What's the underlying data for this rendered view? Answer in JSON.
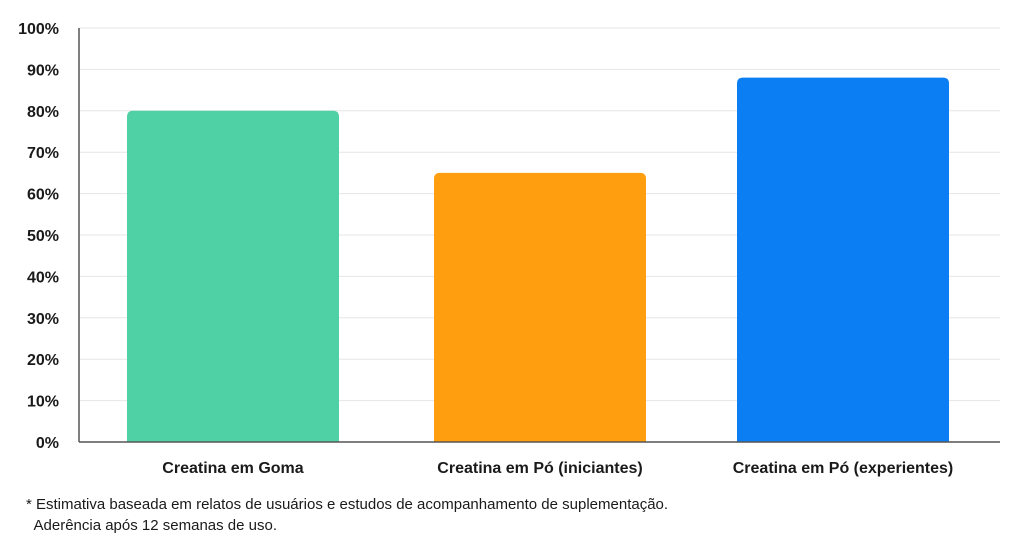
{
  "chart_data": {
    "type": "bar",
    "categories": [
      "Creatina em Goma",
      "Creatina em Pó (iniciantes)",
      "Creatina em Pó (experientes)"
    ],
    "values": [
      80,
      65,
      88
    ],
    "colors": [
      "#4fd1a5",
      "#ff9f0f",
      "#0a7ef2"
    ],
    "ylim": [
      0,
      100
    ],
    "yticks": [
      0,
      10,
      20,
      30,
      40,
      50,
      60,
      70,
      80,
      90,
      100
    ],
    "ytick_suffix": "%",
    "grid": true,
    "legend": "none"
  },
  "footnote": {
    "line1": "* Estimativa baseada em relatos de usuários e estudos de acompanhamento de suplementação.",
    "line2": "  Aderência após 12 semanas de uso."
  }
}
